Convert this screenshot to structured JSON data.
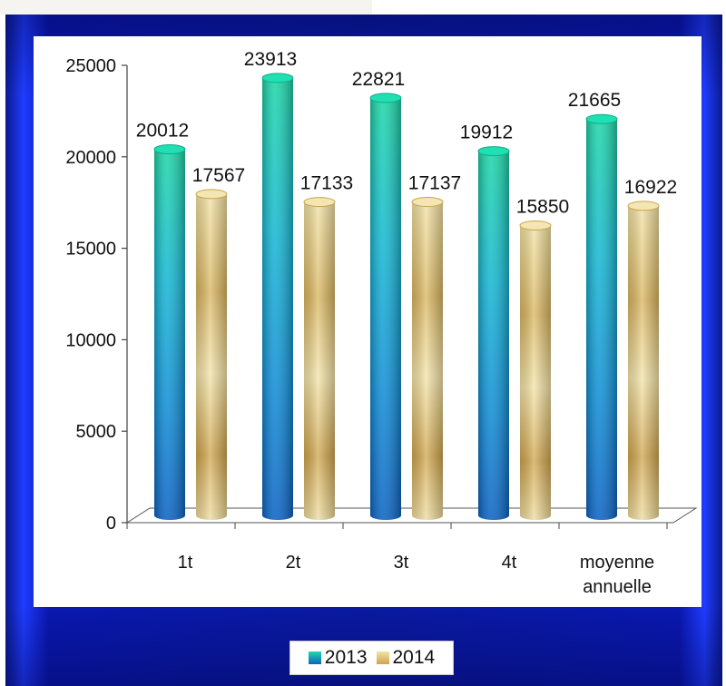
{
  "chart_data": {
    "type": "bar",
    "categories": [
      "1t",
      "2t",
      "3t",
      "4t",
      "moyenne annuelle"
    ],
    "category_lines": [
      [
        "1t"
      ],
      [
        "2t"
      ],
      [
        "3t"
      ],
      [
        "4t"
      ],
      [
        "moyenne",
        "annuelle"
      ]
    ],
    "series": [
      {
        "name": "2013",
        "values": [
          20012,
          23913,
          22821,
          19912,
          21665
        ],
        "color": "#1fa6d8"
      },
      {
        "name": "2014",
        "values": [
          17567,
          17133,
          17137,
          15850,
          16922
        ],
        "color": "#e3c76b"
      }
    ],
    "ylim": [
      0,
      25000
    ],
    "yticks": [
      0,
      5000,
      10000,
      15000,
      20000,
      25000
    ],
    "legend_position": "bottom",
    "grid": false
  },
  "legend": {
    "items": [
      {
        "label": "2013",
        "color": "#1fa6d8"
      },
      {
        "label": "2014",
        "color": "#e3c76b"
      }
    ]
  }
}
